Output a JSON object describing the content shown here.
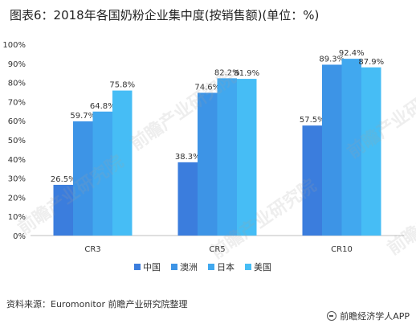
{
  "header": {
    "title": "图表6：2018年各国奶粉企业集中度(按销售额)(单位：%)"
  },
  "footer": {
    "source": "资料来源：Euromonitor 前瞻产业研究院整理",
    "brand": "前瞻经济学人APP"
  },
  "watermark": {
    "text": "前瞻产业研究院"
  },
  "chart_data": {
    "type": "bar",
    "categories": [
      "CR3",
      "CR5",
      "CR10"
    ],
    "series": [
      {
        "name": "中国",
        "values": [
          26.5,
          38.3,
          57.5
        ],
        "color": "#3b7ddd"
      },
      {
        "name": "澳洲",
        "values": [
          59.7,
          74.6,
          89.3
        ],
        "color": "#3d94e6"
      },
      {
        "name": "日本",
        "values": [
          64.8,
          82.2,
          92.4
        ],
        "color": "#41a8ef"
      },
      {
        "name": "美国",
        "values": [
          75.8,
          81.9,
          87.9
        ],
        "color": "#46bdf5"
      }
    ],
    "ylim": [
      0,
      100
    ],
    "yticks": [
      "0%",
      "10%",
      "20%",
      "30%",
      "40%",
      "50%",
      "60%",
      "70%",
      "80%",
      "90%",
      "100%"
    ],
    "value_format": "percent_1dp",
    "grid": false,
    "legend": "bottom-center"
  }
}
